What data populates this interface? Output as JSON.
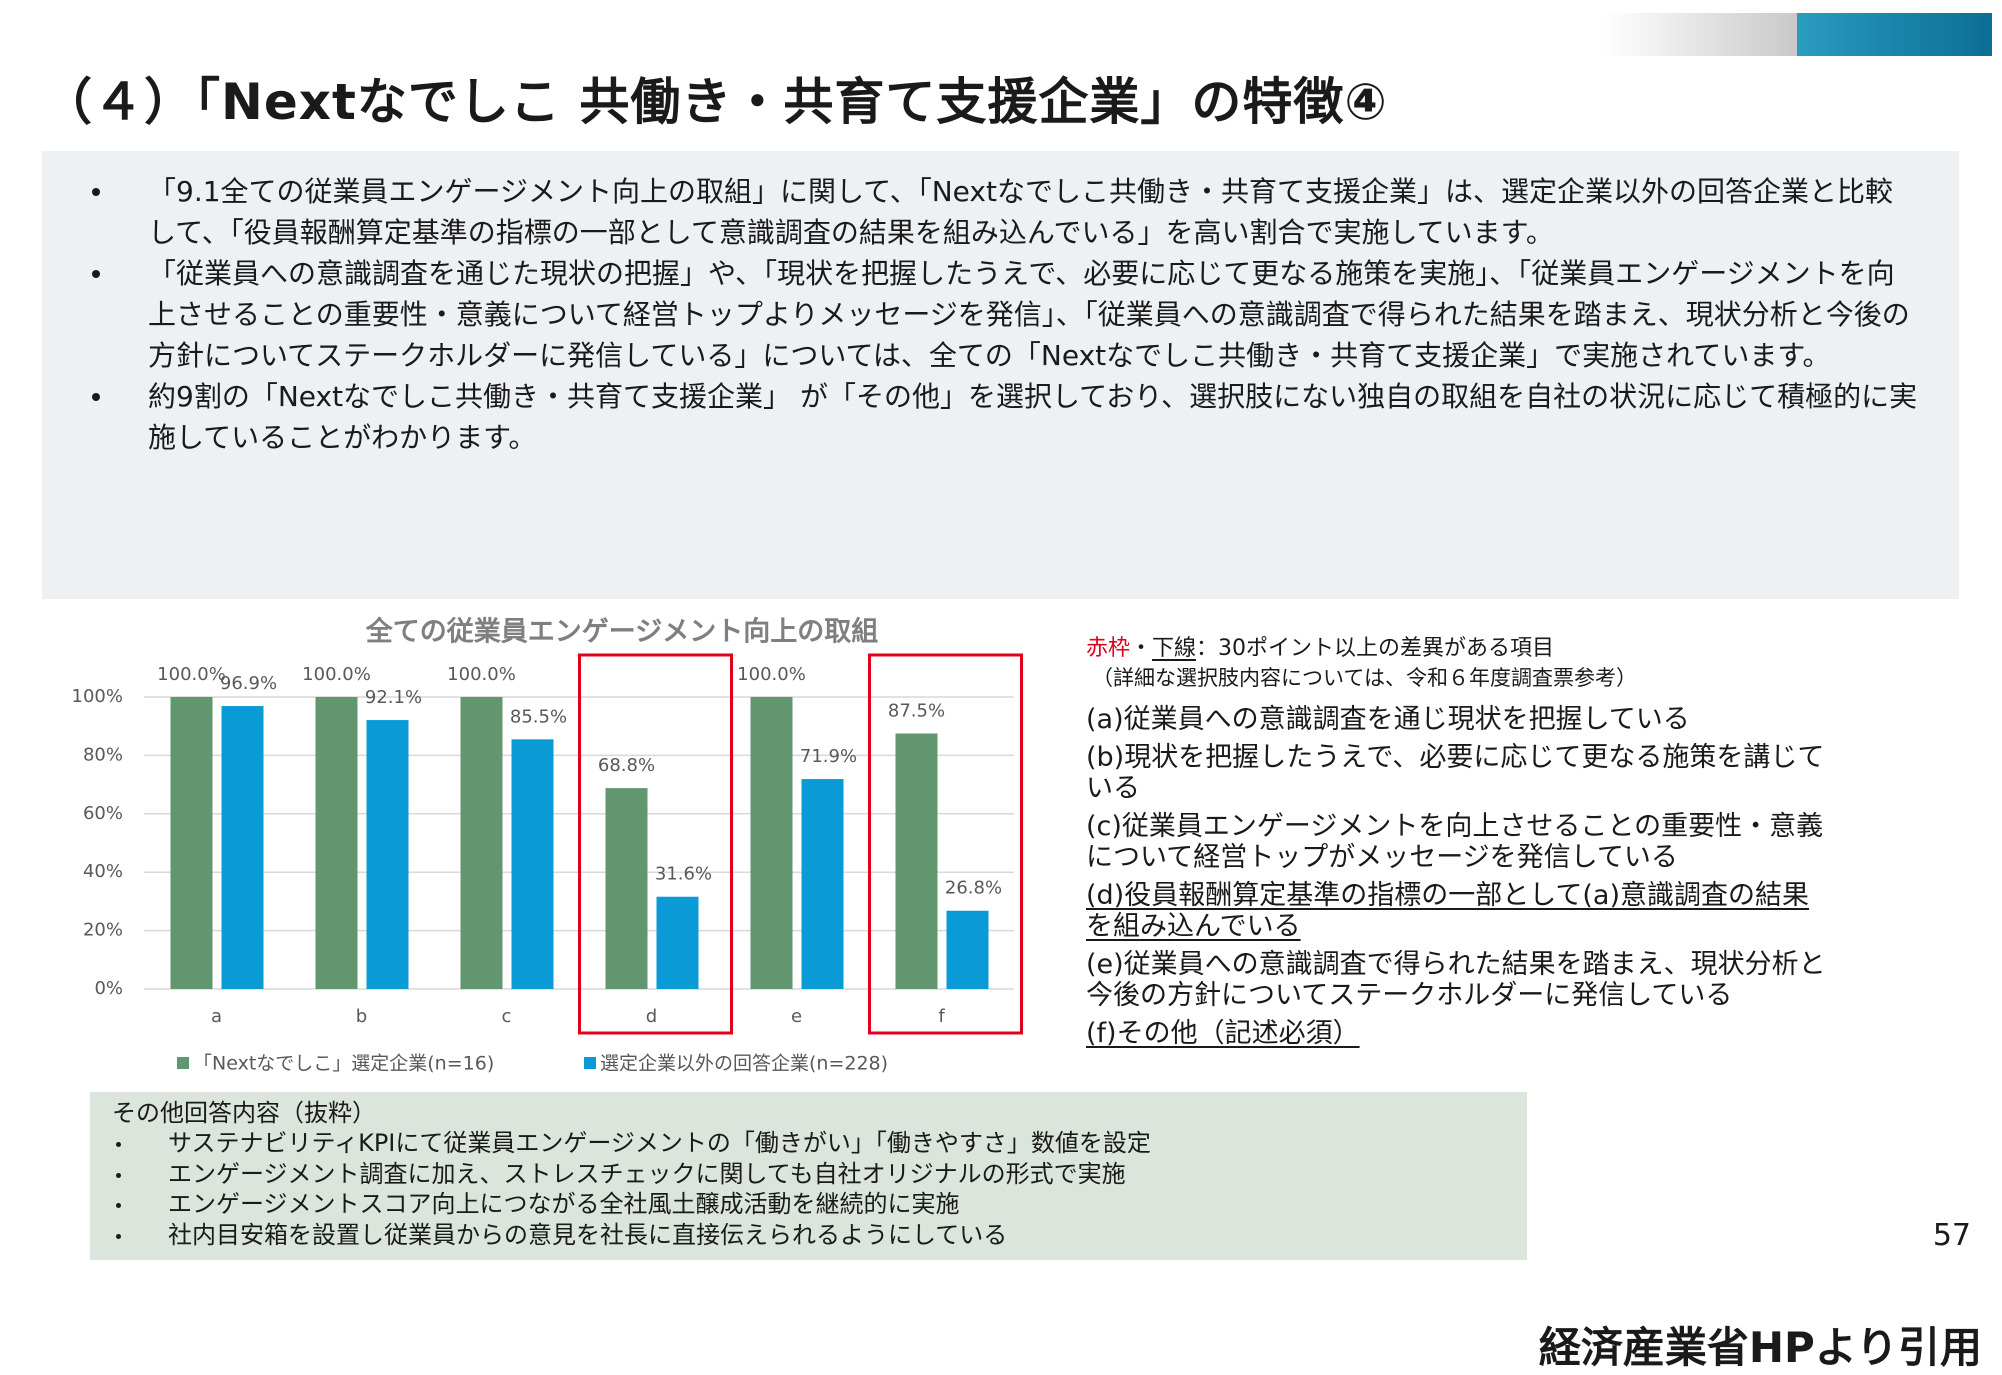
{
  "header": {
    "title": "（４）「Nextなでしこ 共働き・共育て支援企業」の特徴④"
  },
  "summary": {
    "bullets": [
      "「9.1全ての従業員エンゲージメント向上の取組」に関して、「Nextなでしこ共働き・共育て支援企業」は、選定企業以外の回答企業と比較して、「役員報酬算定基準の指標の一部として意識調査の結果を組み込んでいる」を高い割合で実施しています。",
      "「従業員への意識調査を通じた現状の把握」や、「現状を把握したうえで、必要に応じて更なる施策を実施」、「従業員エンゲージメントを向上させることの重要性・意義について経営トップよりメッセージを発信」、「従業員への意識調査で得られた結果を踏まえ、現状分析と今後の方針についてステークホルダーに発信している」については、全ての「Nextなでしこ共働き・共育て支援企業」で実施されています。",
      "約9割の「Nextなでしこ共働き・共育て支援企業」 が「その他」を選択しており、選択肢にない独自の取組を自社の状況に応じて積極的に実施していることがわかります。"
    ]
  },
  "chart_data": {
    "type": "bar",
    "title": "全ての従業員エンゲージメント向上の取組",
    "categories": [
      "a",
      "b",
      "c",
      "d",
      "e",
      "f"
    ],
    "series": [
      {
        "name": "「Nextなでしこ」選定企業(n=16)",
        "color": "#62966f",
        "values": [
          100,
          100,
          100,
          68.8,
          100,
          87.5
        ],
        "value_labels": [
          "100.0%",
          "100.0%",
          "100.0%",
          "68.8%",
          "100.0%",
          "87.5%"
        ]
      },
      {
        "name": "選定企業以外の回答企業(n=228)",
        "color": "#0a9bd6",
        "values": [
          96.9,
          92.1,
          85.5,
          31.6,
          71.9,
          26.8
        ],
        "value_labels": [
          "96.9%",
          "92.1%",
          "85.5%",
          "31.6%",
          "71.9%",
          "26.8%"
        ]
      }
    ],
    "ylim": [
      0,
      100
    ],
    "yticks": [
      {
        "value": 0,
        "label": "0%"
      },
      {
        "value": 20,
        "label": "20%"
      },
      {
        "value": 40,
        "label": "40%"
      },
      {
        "value": 60,
        "label": "60%"
      },
      {
        "value": 80,
        "label": "80%"
      },
      {
        "value": 100,
        "label": "100%"
      }
    ],
    "grid": true,
    "legend": "bottom",
    "highlight": [
      "d",
      "f"
    ],
    "highlight_color": "#e0001b"
  },
  "notes": {
    "legend": {
      "red": "赤枠",
      "separator": "・",
      "underline": "下線",
      "rest": "：30ポイント以上の差異がある項目"
    },
    "reference": "（詳細な選択肢内容については、令和６年度調査票参考）",
    "items": [
      {
        "text": "(a)従業員への意識調査を通じ現状を把握している",
        "underline": false
      },
      {
        "text": "(b)現状を把握したうえで、必要に応じて更なる施策を講じている",
        "underline": false
      },
      {
        "text": "(c)従業員エンゲージメントを向上させることの重要性・意義について経営トップがメッセージを発信している",
        "underline": false
      },
      {
        "text": "(d)役員報酬算定基準の指標の一部として(a)意識調査の結果を組み込んでいる",
        "underline": true
      },
      {
        "text": "(e)従業員への意識調査で得られた結果を踏まえ、現状分析と今後の方針についてステークホルダーに発信している",
        "underline": false
      },
      {
        "text": "(f)その他（記述必須）",
        "underline": true
      }
    ]
  },
  "other_answers": {
    "title": "その他回答内容（抜粋）",
    "bullets": [
      "サステナビリティKPIにて従業員エンゲージメントの「働きがい」「働きやすさ」数値を設定",
      "エンゲージメント調査に加え、ストレスチェックに関しても自社オリジナルの形式で実施",
      "エンゲージメントスコア向上につながる全社風土醸成活動を継続的に実施",
      "社内目安箱を設置し従業員からの意見を社長に直接伝えられるようにしている"
    ]
  },
  "page_number": 57,
  "source": "経済産業省HPより引用"
}
